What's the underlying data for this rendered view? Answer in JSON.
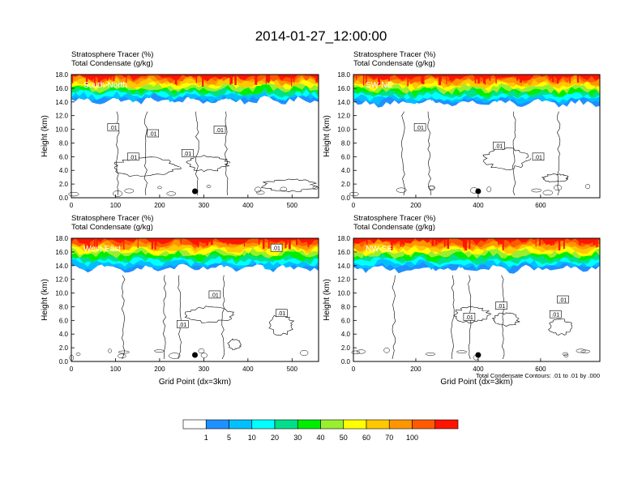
{
  "page": {
    "title": "2014-01-27_12:00:00"
  },
  "chart_data": [
    {
      "type": "heatmap",
      "label": "South-North",
      "title_lines": [
        "Stratosphere Tracer   (%)",
        "Total Condensate   (g/kg)"
      ],
      "ylabel": "Height (km)",
      "xlabel": "",
      "xlim": [
        0,
        560
      ],
      "ylim": [
        0,
        18
      ],
      "xticks": [
        0,
        100,
        200,
        300,
        400,
        500
      ],
      "yticks": [
        "0.0",
        "2.0",
        "4.0",
        "6.0",
        "8.0",
        "10.0",
        "12.0",
        "14.0",
        "16.0",
        "18.0"
      ],
      "tracer_base_km": 14.2,
      "contour_labels": [
        ".01",
        ".01",
        ".01",
        ".01",
        ".01"
      ],
      "marker_x": 280,
      "note": ""
    },
    {
      "type": "heatmap",
      "label": "SW-NE",
      "title_lines": [
        "Stratosphere Tracer   (%)",
        "Total Condensate   (g/kg)"
      ],
      "ylabel": "Height (km)",
      "xlabel": "",
      "xlim": [
        0,
        790
      ],
      "ylim": [
        0,
        18
      ],
      "xticks": [
        0,
        200,
        400,
        600
      ],
      "yticks": [
        "0.0",
        "2.0",
        "4.0",
        "6.0",
        "8.0",
        "10.0",
        "12.0",
        "14.0",
        "16.0",
        "18.0"
      ],
      "tracer_base_km": 13.8,
      "contour_labels": [
        ".01",
        ".01",
        ".01"
      ],
      "marker_x": 400,
      "note": ""
    },
    {
      "type": "heatmap",
      "label": "West-East",
      "title_lines": [
        "Stratosphere Tracer   (%)",
        "Total Condensate   (g/kg)"
      ],
      "ylabel": "Height (km)",
      "xlabel": "Grid Point (dx=3km)",
      "xlim": [
        0,
        560
      ],
      "ylim": [
        0,
        18
      ],
      "xticks": [
        0,
        100,
        200,
        300,
        400,
        500
      ],
      "yticks": [
        "0.0",
        "2.0",
        "4.0",
        "6.0",
        "8.0",
        "10.0",
        "12.0",
        "14.0",
        "16.0",
        "18.0"
      ],
      "tracer_base_km": 13.6,
      "contour_labels": [
        ".01",
        ".01",
        ".01",
        ".01"
      ],
      "marker_x": 280,
      "note": ""
    },
    {
      "type": "heatmap",
      "label": "NW-SE",
      "title_lines": [
        "Stratosphere Tracer   (%)",
        "Total Condensate   (g/kg)"
      ],
      "ylabel": "Height (km)",
      "xlabel": "Grid Point (dx=3km)",
      "xlim": [
        0,
        790
      ],
      "ylim": [
        0,
        18
      ],
      "xticks": [
        0,
        200,
        400,
        600
      ],
      "yticks": [
        "0.0",
        "2.0",
        "4.0",
        "6.0",
        "8.0",
        "10.0",
        "12.0",
        "14.0",
        "16.0",
        "18.0"
      ],
      "tracer_base_km": 13.5,
      "contour_labels": [
        ".01",
        ".01",
        ".01",
        ".01"
      ],
      "marker_x": 400,
      "note": "Total Condensate Contours: .01 to .01 by .000"
    }
  ],
  "colorbar": {
    "levels": [
      "1",
      "5",
      "10",
      "20",
      "30",
      "40",
      "50",
      "60",
      "70",
      "100"
    ],
    "colors": [
      "#ffffff",
      "#1e90ff",
      "#00bfff",
      "#00ffff",
      "#00e08c",
      "#00ee00",
      "#9aee30",
      "#ffff00",
      "#ffc800",
      "#ff9600",
      "#ff5a00",
      "#ff1400"
    ]
  }
}
